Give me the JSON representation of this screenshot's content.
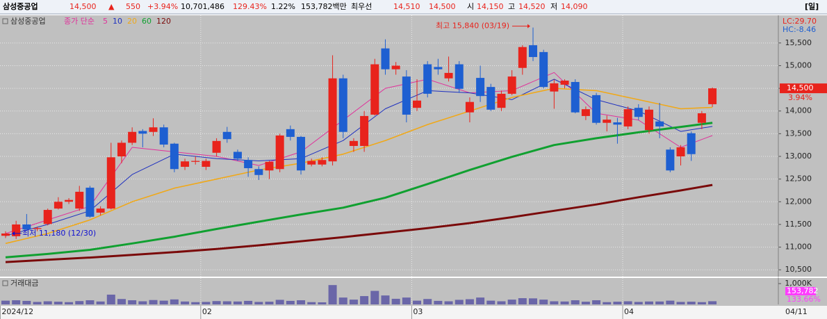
{
  "header": {
    "name": "삼성중공업",
    "price": "14,500",
    "arrow": "▲",
    "change": "550",
    "change_pct": "+3.94%",
    "volume": "10,701,486",
    "volume_ratio": "129.43%",
    "turnover": "1.22%",
    "amount": "153,782백만",
    "best_label": "최우선",
    "ask": "14,510",
    "bid": "14,500",
    "open_label": "시",
    "open": "14,150",
    "high_label": "고",
    "high": "14,520",
    "low_label": "저",
    "low": "14,090",
    "period": "[일]"
  },
  "chart_data": {
    "type": "candlestick",
    "title": "삼성중공업",
    "ma_label": "종가 단순",
    "up_color": "#e8231c",
    "down_color": "#1e5fd1",
    "open": [
      11250,
      11240,
      11500,
      11400,
      11510,
      11850,
      12000,
      11850,
      12310,
      11760,
      11850,
      13000,
      13300,
      13560,
      13540,
      13640,
      13280,
      12770,
      12880,
      12770,
      13080,
      13540,
      13100,
      12920,
      12720,
      12690,
      12720,
      13600,
      13430,
      12820,
      12820,
      12890,
      14720,
      13230,
      13230,
      13920,
      15380,
      14920,
      14760,
      14070,
      15030,
      14970,
      14720,
      15030,
      13970,
      14730,
      14530,
      14070,
      14380,
      14950,
      15450,
      15300,
      14430,
      14580,
      14640,
      13890,
      14350,
      13740,
      13750,
      13660,
      14070,
      13580,
      13770,
      13150,
      13000,
      13510,
      13740,
      14150
    ],
    "high": [
      11350,
      11580,
      11730,
      11450,
      11850,
      12100,
      12080,
      12350,
      12350,
      11900,
      13300,
      13350,
      13640,
      13600,
      13840,
      13700,
      13300,
      12950,
      13000,
      12950,
      13400,
      13650,
      13150,
      12980,
      12780,
      12900,
      13500,
      13680,
      13450,
      12950,
      12980,
      15230,
      14800,
      13400,
      14000,
      15150,
      15580,
      15080,
      14900,
      14700,
      15100,
      15150,
      15200,
      15100,
      14300,
      15000,
      14600,
      14450,
      14900,
      15450,
      15840,
      15350,
      14700,
      14700,
      14700,
      14100,
      14400,
      13900,
      13850,
      14100,
      14150,
      14100,
      14180,
      13200,
      13250,
      13550,
      14000,
      14520
    ],
    "low": [
      11200,
      11180,
      11350,
      11350,
      11480,
      11830,
      11950,
      11800,
      11650,
      11700,
      11830,
      12850,
      13250,
      13200,
      13450,
      13200,
      12650,
      12700,
      12820,
      12700,
      13000,
      13300,
      12900,
      12550,
      12480,
      12500,
      12650,
      13350,
      12600,
      12780,
      12780,
      12800,
      13400,
      13100,
      13100,
      13900,
      14800,
      14800,
      13750,
      14000,
      14300,
      14800,
      14650,
      14400,
      13750,
      14200,
      14000,
      14000,
      14350,
      14800,
      15100,
      14500,
      14050,
      14500,
      13950,
      13800,
      13700,
      13550,
      13280,
      13600,
      13800,
      13500,
      13400,
      12650,
      12800,
      12900,
      13600,
      14090
    ],
    "close": [
      11300,
      11500,
      11390,
      11420,
      11820,
      12000,
      12040,
      12220,
      11670,
      11850,
      12980,
      13300,
      13540,
      13500,
      13640,
      13260,
      12720,
      12890,
      12900,
      12900,
      13340,
      13380,
      12950,
      12740,
      12590,
      12880,
      13460,
      13430,
      12690,
      12900,
      12920,
      14720,
      13540,
      13340,
      13890,
      15030,
      14920,
      15000,
      13920,
      14230,
      14380,
      14920,
      14840,
      14490,
      14200,
      14330,
      14030,
      14380,
      14760,
      15410,
      15190,
      14530,
      14610,
      14670,
      13970,
      14040,
      13740,
      13810,
      13700,
      14040,
      13870,
      14030,
      13660,
      12690,
      13200,
      13050,
      13950,
      14500
    ],
    "ylim": [
      10350,
      16110
    ],
    "yticks": [
      {
        "value": 10500,
        "label": "10,500"
      },
      {
        "value": 11000,
        "label": "11,000"
      },
      {
        "value": 11500,
        "label": "11,500"
      },
      {
        "value": 12000,
        "label": "12,000"
      },
      {
        "value": 12500,
        "label": "12,500"
      },
      {
        "value": 13000,
        "label": "13,000"
      },
      {
        "value": 13500,
        "label": "13,500"
      },
      {
        "value": 14000,
        "label": "14,000"
      },
      {
        "value": 14500,
        "label": "14,500"
      },
      {
        "value": 15000,
        "label": "15,000"
      },
      {
        "value": 15500,
        "label": "15,500"
      }
    ],
    "xticks": [
      {
        "value": 0,
        "label": "2024/12"
      },
      {
        "value": 19,
        "label": "02"
      },
      {
        "value": 39,
        "label": "03"
      },
      {
        "value": 59,
        "label": "04"
      }
    ],
    "last_date": "04/11",
    "moving_averages": {
      "x": [
        0,
        4,
        8,
        12,
        16,
        20,
        24,
        28,
        32,
        36,
        40,
        44,
        48,
        52,
        56,
        60,
        64,
        67
      ],
      "series": [
        {
          "name": "5",
          "color": "#e0309a",
          "values": [
            11300,
            11600,
            11900,
            13200,
            13100,
            13000,
            12800,
            13100,
            13800,
            14500,
            14700,
            14400,
            14450,
            14850,
            13950,
            13800,
            13200,
            13460
          ]
        },
        {
          "name": "10",
          "color": "#1d2fbf",
          "values": [
            11250,
            11500,
            11800,
            12600,
            13050,
            12950,
            12900,
            12950,
            13350,
            14050,
            14450,
            14400,
            14250,
            14700,
            14250,
            14000,
            13550,
            13660
          ]
        },
        {
          "name": "20",
          "color": "#f0a818",
          "values": [
            11080,
            11300,
            11600,
            12000,
            12300,
            12500,
            12700,
            12850,
            13050,
            13350,
            13700,
            14000,
            14300,
            14500,
            14450,
            14250,
            14050,
            14080
          ]
        },
        {
          "name": "60",
          "color": "#10a030",
          "values": [
            10775,
            10850,
            10940,
            11080,
            11230,
            11400,
            11560,
            11720,
            11870,
            12090,
            12390,
            12700,
            12990,
            13250,
            13400,
            13530,
            13650,
            13740
          ]
        },
        {
          "name": "120",
          "color": "#7a0a0a",
          "values": [
            10670,
            10720,
            10770,
            10830,
            10890,
            10960,
            11040,
            11130,
            11220,
            11320,
            11420,
            11530,
            11660,
            11800,
            11940,
            12100,
            12250,
            12370
          ]
        }
      ]
    },
    "annotations": [
      {
        "text": "최고 15,840 (03/19)",
        "value": 15840,
        "color": "#e8231c"
      },
      {
        "text": "최저 11,180 (12/30)",
        "value": 11180,
        "color": "#1010d0"
      }
    ],
    "indicators": [
      {
        "text": "LC:29.70",
        "color": "#e8231c"
      },
      {
        "text": "HC:-8.46",
        "color": "#1e5fd1"
      }
    ],
    "last_price": {
      "value": 14500,
      "label": "14,500"
    },
    "last_change": "3.94%",
    "volume": {
      "type": "bar",
      "title": "거래대금",
      "color": "#6a66a8",
      "values": [
        180000,
        200000,
        170000,
        120000,
        150000,
        130000,
        110000,
        160000,
        200000,
        140000,
        470000,
        260000,
        200000,
        150000,
        210000,
        180000,
        240000,
        140000,
        110000,
        120000,
        160000,
        150000,
        140000,
        170000,
        120000,
        130000,
        220000,
        170000,
        200000,
        110000,
        100000,
        930000,
        330000,
        230000,
        400000,
        650000,
        430000,
        270000,
        330000,
        180000,
        260000,
        170000,
        150000,
        220000,
        250000,
        330000,
        180000,
        150000,
        230000,
        300000,
        290000,
        230000,
        150000,
        140000,
        200000,
        130000,
        200000,
        110000,
        130000,
        150000,
        120000,
        140000,
        140000,
        180000,
        120000,
        130000,
        110000,
        153782
      ],
      "ylim": [
        0,
        1270000
      ],
      "yticks": [
        {
          "value": 1000000,
          "label": "1,000K"
        }
      ],
      "last_value": {
        "value": 153782,
        "label": "153,782"
      },
      "ratio": "133.66%"
    }
  }
}
